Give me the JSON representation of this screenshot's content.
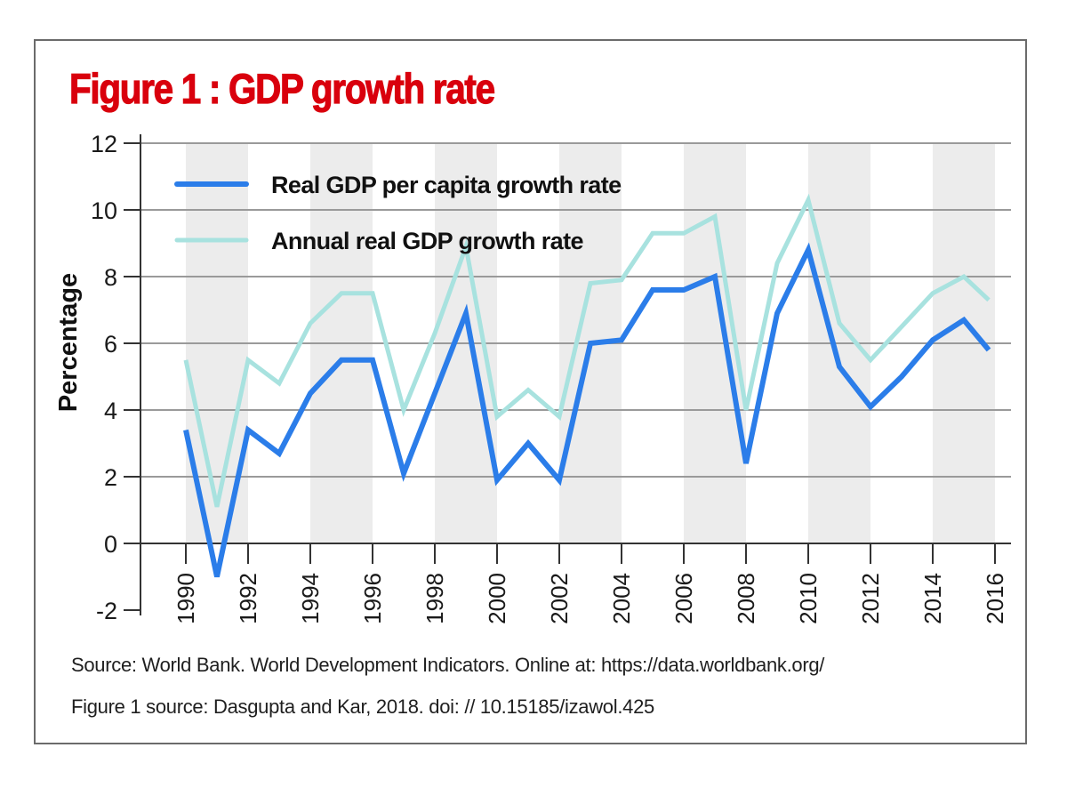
{
  "chart_data": {
    "type": "line",
    "title": "Figure 1 : GDP growth rate",
    "xlabel": "",
    "ylabel": "Percentage",
    "x": [
      1990,
      1991,
      1992,
      1993,
      1994,
      1995,
      1996,
      1997,
      1998,
      1999,
      2000,
      2001,
      2002,
      2003,
      2004,
      2005,
      2006,
      2007,
      2008,
      2009,
      2010,
      2011,
      2012,
      2013,
      2014,
      2015,
      2016
    ],
    "xticks": [
      "1990",
      "1992",
      "1994",
      "1996",
      "1998",
      "2000",
      "2002",
      "2004",
      "2006",
      "2008",
      "2010",
      "2012",
      "2014",
      "2016"
    ],
    "xlim": [
      1990,
      2016
    ],
    "ylim": [
      -2,
      12
    ],
    "yticks": [
      "12",
      "10",
      "8",
      "6",
      "4",
      "2",
      "0",
      "-2"
    ],
    "grid": "horizontal",
    "shaded_bands": [
      [
        1990,
        1992
      ],
      [
        1994,
        1996
      ],
      [
        1998,
        2000
      ],
      [
        2002,
        2004
      ],
      [
        2006,
        2008
      ],
      [
        2010,
        2012
      ],
      [
        2014,
        2016
      ]
    ],
    "legend_position": "top-left",
    "series": [
      {
        "name": "Real GDP per capita growth rate",
        "color": "#2b7de9",
        "values": [
          3.4,
          -1.0,
          3.4,
          2.7,
          4.5,
          5.5,
          5.5,
          2.1,
          4.5,
          6.9,
          1.9,
          3.0,
          1.9,
          6.0,
          6.1,
          7.6,
          7.6,
          8.0,
          2.4,
          6.9,
          8.8,
          5.3,
          4.1,
          5.0,
          6.1,
          6.7,
          5.8
        ]
      },
      {
        "name": "Annual real GDP growth rate",
        "color": "#a8e2df",
        "values": [
          5.5,
          1.1,
          5.5,
          4.8,
          6.6,
          7.5,
          7.5,
          4.0,
          6.3,
          8.9,
          3.8,
          4.6,
          3.8,
          7.8,
          7.9,
          9.3,
          9.3,
          9.8,
          4.0,
          8.4,
          10.3,
          6.6,
          5.5,
          6.5,
          7.5,
          8.0,
          7.3
        ]
      }
    ]
  },
  "source_lines": [
    "Source: World Bank. World Development Indicators. Online at: https://data.worldbank.org/",
    "Figure 1 source: Dasgupta and Kar, 2018. doi: // 10.15185/izawol.425"
  ],
  "colors": {
    "title": "#d9000d",
    "band": "#ececec",
    "grid": "#9a9a9a"
  }
}
